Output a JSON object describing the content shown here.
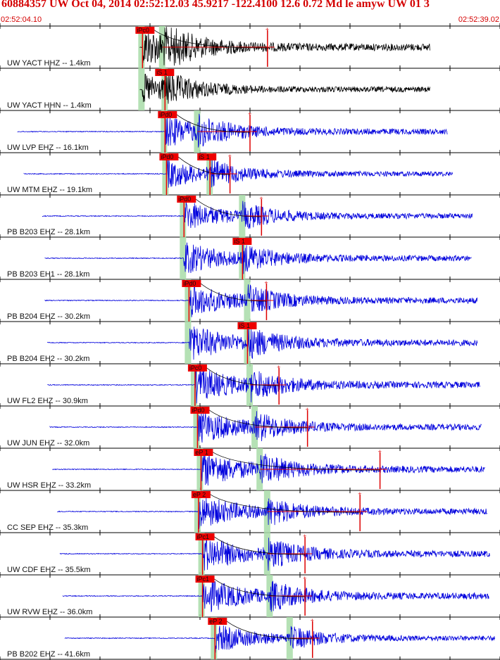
{
  "header": {
    "title": "60884357 UW Oct 04, 2014 02:52:12.03   45.9217 -122.4100 12.6 0.72 Md le amyw UW 01   3",
    "start_time": "02:52:04.10",
    "end_time": "02:52:39.02"
  },
  "colors": {
    "title": "#d40000",
    "trace_black": "#000000",
    "trace_blue": "#0000dd",
    "pick_box": "#ee0000",
    "window_shade": "#a8dca8",
    "coda_marker": "#dd0000"
  },
  "traces": [
    {
      "label": "UW YACT HHZ -- 1.4km",
      "color": "black",
      "pick": "iPc0",
      "wave_start": 0.28,
      "wave_end": 0.86,
      "pick_x": 0.285,
      "s_x": 0.325,
      "coda_x": 0.535,
      "amp": 1.0
    },
    {
      "label": "UW YACT HHN -- 1.4km",
      "color": "black",
      "pick": "iS 1",
      "wave_start": 0.28,
      "wave_end": 0.86,
      "pick_x": 0.285,
      "s_x": 0.33,
      "coda_x": 0,
      "amp": 0.75,
      "s_pick_box": true
    },
    {
      "label": "UW LVP EHZ -- 16.1km",
      "color": "blue",
      "pick": "iPd0",
      "wave_start": 0.035,
      "wave_end": 0.895,
      "pick_x": 0.33,
      "s_x": 0.395,
      "coda_x": 0.5,
      "amp": 0.8
    },
    {
      "label": "UW MTM EHZ -- 19.1km",
      "color": "blue",
      "pick": "iPd0",
      "wave_start": 0.048,
      "wave_end": 0.905,
      "pick_x": 0.333,
      "s_x": 0.42,
      "coda_x": 0.46,
      "amp": 0.7,
      "extra_pick": "iS 1"
    },
    {
      "label": "PB B203 EHZ -- 28.1km",
      "color": "blue",
      "pick": "iPd0",
      "wave_start": 0.085,
      "wave_end": 0.945,
      "pick_x": 0.368,
      "s_x": 0.485,
      "coda_x": 0.523,
      "amp": 0.75
    },
    {
      "label": "PB B203 EH1 -- 28.1km",
      "color": "blue",
      "pick": "iS 1",
      "wave_start": 0.09,
      "wave_end": 0.943,
      "pick_x": 0.368,
      "s_x": 0.485,
      "coda_x": 0,
      "amp": 0.8,
      "s_pick_box": true
    },
    {
      "label": "PB B204 EHZ -- 30.2km",
      "color": "blue",
      "pick": "iPd0",
      "wave_start": 0.09,
      "wave_end": 0.955,
      "pick_x": 0.378,
      "s_x": 0.495,
      "coda_x": 0.533,
      "amp": 0.85
    },
    {
      "label": "PB B204 EH2 -- 30.2km",
      "color": "blue",
      "pick": "iS 1",
      "wave_start": 0.095,
      "wave_end": 0.955,
      "pick_x": 0.378,
      "s_x": 0.495,
      "coda_x": 0,
      "amp": 0.9,
      "s_pick_box": true
    },
    {
      "label": "UW FL2 EHZ -- 30.9km",
      "color": "blue",
      "pick": "iPc0",
      "wave_start": 0.095,
      "wave_end": 0.96,
      "pick_x": 0.39,
      "s_x": 0.5,
      "coda_x": 0.558,
      "amp": 0.9
    },
    {
      "label": "UW JUN EHZ -- 32.0km",
      "color": "blue",
      "pick": "iPd0",
      "wave_start": 0.1,
      "wave_end": 0.963,
      "pick_x": 0.395,
      "s_x": 0.51,
      "coda_x": 0.615,
      "amp": 0.85
    },
    {
      "label": "UW HSR EHZ -- 33.2km",
      "color": "blue",
      "pick": "eP 1",
      "wave_start": 0.105,
      "wave_end": 0.97,
      "pick_x": 0.402,
      "s_x": 0.52,
      "coda_x": 0.76,
      "amp": 0.9
    },
    {
      "label": "CC SEP EHZ -- 35.3km",
      "color": "blue",
      "pick": "eP 2",
      "wave_start": 0.115,
      "wave_end": 0.975,
      "pick_x": 0.397,
      "s_x": 0.535,
      "coda_x": 0.72,
      "amp": 0.85
    },
    {
      "label": "UW CDF EHZ -- 35.5km",
      "color": "blue",
      "pick": "iPc1",
      "wave_start": 0.12,
      "wave_end": 0.98,
      "pick_x": 0.405,
      "s_x": 0.535,
      "coda_x": 0.61,
      "amp": 0.9
    },
    {
      "label": "UW RVW EHZ -- 36.0km",
      "color": "blue",
      "pick": "iPc1",
      "wave_start": 0.125,
      "wave_end": 0.978,
      "pick_x": 0.405,
      "s_x": 0.54,
      "coda_x": 0.61,
      "amp": 0.9
    },
    {
      "label": "PB B202 EHZ -- 41.6km",
      "color": "blue",
      "pick": "eP 2",
      "wave_start": 0.13,
      "wave_end": 0.99,
      "pick_x": 0.43,
      "s_x": 0.58,
      "coda_x": 0.625,
      "amp": 0.7
    }
  ]
}
